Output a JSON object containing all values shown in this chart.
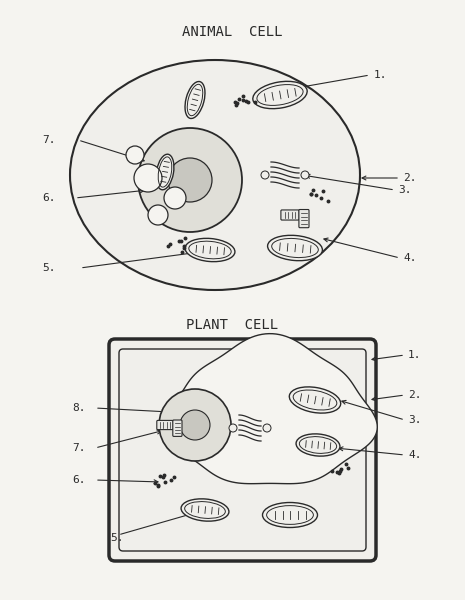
{
  "bg_color": "#f5f4f0",
  "line_color": "#2a2a2a",
  "animal_title": "ANIMAL  CELL",
  "plant_title": "PLANT  CELL",
  "figsize": [
    4.65,
    6.0
  ],
  "dpi": 100,
  "title_fontsize": 10,
  "label_fontsize": 8
}
